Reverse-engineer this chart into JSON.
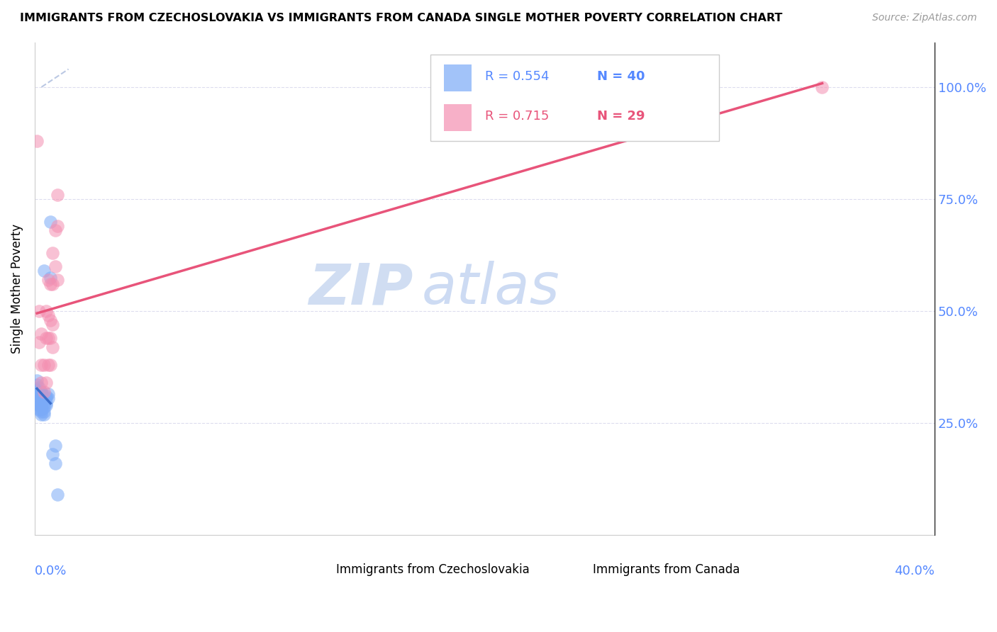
{
  "title": "IMMIGRANTS FROM CZECHOSLOVAKIA VS IMMIGRANTS FROM CANADA SINGLE MOTHER POVERTY CORRELATION CHART",
  "source": "Source: ZipAtlas.com",
  "ylabel": "Single Mother Poverty",
  "legend_czecho": "Immigrants from Czechoslovakia",
  "legend_canada": "Immigrants from Canada",
  "R_czecho": 0.554,
  "N_czecho": 40,
  "R_canada": 0.715,
  "N_canada": 29,
  "color_czecho": "#7baaf7",
  "color_canada": "#f48fb1",
  "color_czecho_line": "#3d6fcc",
  "color_canada_line": "#e8547a",
  "color_diagonal": "#aabbdd",
  "xmin": 0.0,
  "xmax": 0.4,
  "ymin": 0.0,
  "ymax": 1.1,
  "czecho_x": [
    0.0005,
    0.001,
    0.001,
    0.001,
    0.001,
    0.002,
    0.002,
    0.002,
    0.002,
    0.002,
    0.002,
    0.002,
    0.003,
    0.003,
    0.003,
    0.003,
    0.003,
    0.003,
    0.003,
    0.003,
    0.003,
    0.003,
    0.003,
    0.004,
    0.004,
    0.004,
    0.004,
    0.004,
    0.005,
    0.005,
    0.005,
    0.005,
    0.006,
    0.006,
    0.007,
    0.007,
    0.008,
    0.009,
    0.009,
    0.01
  ],
  "czecho_y": [
    0.295,
    0.315,
    0.325,
    0.335,
    0.345,
    0.28,
    0.29,
    0.3,
    0.31,
    0.315,
    0.32,
    0.33,
    0.27,
    0.275,
    0.28,
    0.285,
    0.29,
    0.295,
    0.3,
    0.31,
    0.315,
    0.32,
    0.32,
    0.27,
    0.275,
    0.285,
    0.295,
    0.59,
    0.29,
    0.295,
    0.305,
    0.31,
    0.305,
    0.315,
    0.575,
    0.7,
    0.18,
    0.16,
    0.2,
    0.09
  ],
  "canada_x": [
    0.001,
    0.002,
    0.002,
    0.003,
    0.003,
    0.003,
    0.004,
    0.004,
    0.005,
    0.005,
    0.005,
    0.006,
    0.006,
    0.006,
    0.006,
    0.007,
    0.007,
    0.007,
    0.007,
    0.008,
    0.008,
    0.008,
    0.008,
    0.009,
    0.009,
    0.01,
    0.01,
    0.01,
    0.35
  ],
  "canada_y": [
    0.88,
    0.43,
    0.5,
    0.34,
    0.38,
    0.45,
    0.32,
    0.38,
    0.34,
    0.44,
    0.5,
    0.38,
    0.44,
    0.49,
    0.57,
    0.38,
    0.44,
    0.48,
    0.56,
    0.42,
    0.47,
    0.56,
    0.63,
    0.6,
    0.68,
    0.57,
    0.69,
    0.76,
    1.0
  ]
}
